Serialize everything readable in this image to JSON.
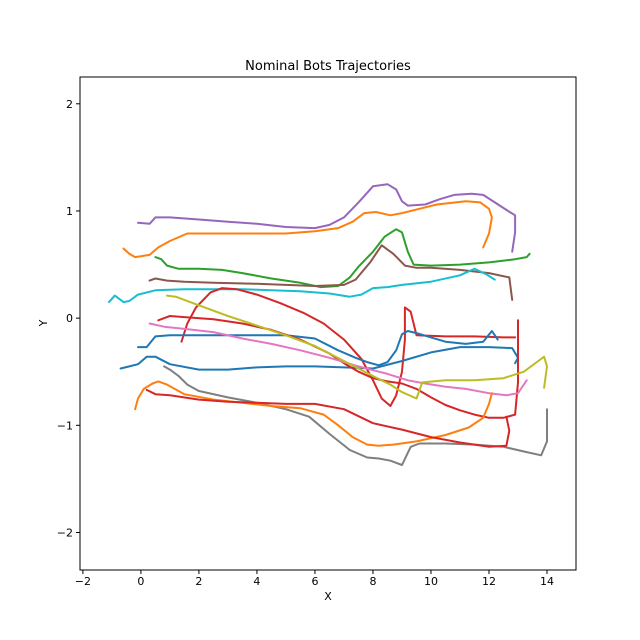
{
  "chart_data": {
    "type": "line",
    "title": "Nominal Bots Trajectories",
    "xlabel": "X",
    "ylabel": "Y",
    "xlim": [
      -2.1,
      15.0
    ],
    "ylim": [
      -2.35,
      2.25
    ],
    "xticks": [
      -2,
      0,
      2,
      4,
      6,
      8,
      10,
      12,
      14
    ],
    "yticks": [
      -2,
      -1,
      0,
      1,
      2
    ],
    "grid": false,
    "legend": "none",
    "series": [
      {
        "color": "#9467bd",
        "x": [
          -0.1,
          0.3,
          0.5,
          1.0,
          2.0,
          3.0,
          4.0,
          5.0,
          6.0,
          6.5,
          7.0,
          7.5,
          8.0,
          8.5,
          8.8,
          9.0,
          9.2,
          9.8,
          10.3,
          10.8,
          11.4,
          11.8,
          12.2,
          12.6,
          12.9,
          12.9,
          12.8
        ],
        "y": [
          0.89,
          0.88,
          0.94,
          0.94,
          0.92,
          0.9,
          0.88,
          0.85,
          0.84,
          0.87,
          0.94,
          1.08,
          1.23,
          1.25,
          1.2,
          1.09,
          1.05,
          1.06,
          1.11,
          1.15,
          1.16,
          1.15,
          1.08,
          1.01,
          0.96,
          0.8,
          0.62
        ]
      },
      {
        "color": "#ff7f0e",
        "x": [
          -0.6,
          -0.4,
          -0.2,
          0.3,
          0.6,
          1.0,
          1.6,
          3.0,
          4.0,
          5.0,
          6.0,
          6.8,
          7.3,
          7.7,
          8.1,
          8.6,
          9.0,
          9.6,
          10.2,
          11.2,
          11.7,
          12.0,
          12.1,
          12.0,
          11.8
        ],
        "y": [
          0.65,
          0.6,
          0.57,
          0.59,
          0.66,
          0.72,
          0.79,
          0.79,
          0.79,
          0.79,
          0.81,
          0.84,
          0.9,
          0.98,
          0.99,
          0.96,
          0.98,
          1.02,
          1.06,
          1.09,
          1.08,
          1.02,
          0.94,
          0.79,
          0.66
        ]
      },
      {
        "color": "#2ca02c",
        "x": [
          0.5,
          0.7,
          0.9,
          1.3,
          2.0,
          2.8,
          3.5,
          4.5,
          5.5,
          6.2,
          6.8,
          7.2,
          7.5,
          8.0,
          8.4,
          8.8,
          9.0,
          9.2,
          9.4,
          10.0,
          11.0,
          12.0,
          12.9,
          13.3,
          13.4
        ],
        "y": [
          0.57,
          0.55,
          0.49,
          0.46,
          0.46,
          0.45,
          0.42,
          0.37,
          0.33,
          0.29,
          0.3,
          0.38,
          0.48,
          0.62,
          0.76,
          0.83,
          0.8,
          0.62,
          0.5,
          0.49,
          0.5,
          0.52,
          0.55,
          0.57,
          0.6
        ]
      },
      {
        "color": "#8c564b",
        "x": [
          0.3,
          0.5,
          0.9,
          1.5,
          2.5,
          4.0,
          5.0,
          6.0,
          7.0,
          7.4,
          7.9,
          8.3,
          8.7,
          9.1,
          9.5,
          10.0,
          11.0,
          12.0,
          12.7,
          12.8
        ],
        "y": [
          0.35,
          0.37,
          0.35,
          0.34,
          0.33,
          0.32,
          0.31,
          0.3,
          0.31,
          0.36,
          0.52,
          0.68,
          0.6,
          0.49,
          0.47,
          0.47,
          0.45,
          0.42,
          0.38,
          0.17
        ]
      },
      {
        "color": "#17becf",
        "x": [
          -1.1,
          -0.9,
          -0.6,
          -0.4,
          -0.1,
          0.5,
          1.5,
          2.5,
          3.5,
          4.5,
          5.5,
          6.5,
          7.2,
          7.6,
          8.0,
          8.5,
          9.0,
          10.0,
          11.0,
          11.5,
          11.9,
          12.2
        ],
        "y": [
          0.15,
          0.21,
          0.15,
          0.16,
          0.22,
          0.26,
          0.27,
          0.27,
          0.27,
          0.26,
          0.25,
          0.23,
          0.2,
          0.22,
          0.28,
          0.29,
          0.31,
          0.34,
          0.4,
          0.46,
          0.41,
          0.36
        ]
      },
      {
        "color": "#d62728",
        "x": [
          1.4,
          1.6,
          1.9,
          2.4,
          2.8,
          3.3,
          4.0,
          4.8,
          5.6,
          6.3,
          7.0,
          7.6,
          8.0,
          8.3,
          8.6,
          8.8,
          9.0,
          9.1,
          9.1,
          9.3,
          9.5,
          10.5,
          11.5,
          12.5,
          12.9
        ],
        "y": [
          -0.22,
          -0.05,
          0.1,
          0.24,
          0.28,
          0.27,
          0.22,
          0.14,
          0.05,
          -0.05,
          -0.2,
          -0.38,
          -0.58,
          -0.75,
          -0.82,
          -0.72,
          -0.5,
          -0.2,
          0.1,
          0.06,
          -0.16,
          -0.17,
          -0.17,
          -0.18,
          -0.18
        ]
      },
      {
        "color": "#1f77b4",
        "x": [
          -0.1,
          0.2,
          0.5,
          1.0,
          2.0,
          3.5,
          5.0,
          6.0,
          6.8,
          7.4,
          7.8,
          8.2,
          8.5,
          8.8,
          9.0,
          9.2,
          9.5,
          10.0,
          10.5,
          11.2,
          11.8,
          12.1,
          12.3
        ],
        "y": [
          -0.27,
          -0.27,
          -0.17,
          -0.16,
          -0.16,
          -0.16,
          -0.16,
          -0.19,
          -0.3,
          -0.37,
          -0.41,
          -0.44,
          -0.41,
          -0.3,
          -0.15,
          -0.12,
          -0.14,
          -0.18,
          -0.22,
          -0.24,
          -0.22,
          -0.12,
          -0.2
        ]
      },
      {
        "color": "#1f77b4",
        "x": [
          -0.7,
          -0.4,
          -0.1,
          0.2,
          0.5,
          1.0,
          2.0,
          3.0,
          4.0,
          5.0,
          6.0,
          7.0,
          8.0,
          9.0,
          10.0,
          11.0,
          12.0,
          12.8,
          13.0,
          12.9
        ],
        "y": [
          -0.47,
          -0.45,
          -0.43,
          -0.36,
          -0.36,
          -0.43,
          -0.48,
          -0.48,
          -0.46,
          -0.45,
          -0.45,
          -0.46,
          -0.47,
          -0.4,
          -0.32,
          -0.27,
          -0.27,
          -0.28,
          -0.37,
          -0.42
        ]
      },
      {
        "color": "#d62728",
        "x": [
          0.6,
          1.0,
          1.5,
          2.5,
          3.5,
          4.5,
          5.5,
          6.5,
          7.0,
          7.5,
          8.0,
          8.5,
          9.0,
          9.5,
          10.0,
          10.5,
          11.0,
          11.5,
          12.0,
          12.5,
          12.9,
          13.0,
          13.0
        ],
        "y": [
          -0.02,
          0.02,
          0.01,
          -0.01,
          -0.05,
          -0.11,
          -0.2,
          -0.33,
          -0.42,
          -0.5,
          -0.56,
          -0.59,
          -0.61,
          -0.66,
          -0.74,
          -0.81,
          -0.86,
          -0.9,
          -0.93,
          -0.93,
          -0.9,
          -0.6,
          -0.02
        ]
      },
      {
        "color": "#e377c2",
        "x": [
          0.3,
          0.8,
          1.5,
          2.5,
          3.5,
          4.5,
          5.5,
          6.5,
          7.5,
          8.5,
          9.2,
          9.8,
          10.5,
          11.2,
          12.0,
          12.6,
          13.0,
          13.2,
          13.3
        ],
        "y": [
          -0.05,
          -0.08,
          -0.1,
          -0.13,
          -0.19,
          -0.24,
          -0.3,
          -0.37,
          -0.45,
          -0.52,
          -0.58,
          -0.61,
          -0.64,
          -0.66,
          -0.7,
          -0.72,
          -0.7,
          -0.62,
          -0.58
        ]
      },
      {
        "color": "#bcbd22",
        "x": [
          0.9,
          1.2,
          2.0,
          3.0,
          4.0,
          5.0,
          6.0,
          7.0,
          8.0,
          8.6,
          9.0,
          9.5,
          9.7,
          10.5,
          11.5,
          12.5,
          13.2,
          13.7,
          13.9,
          14.0,
          13.9
        ],
        "y": [
          0.21,
          0.2,
          0.12,
          0.02,
          -0.07,
          -0.16,
          -0.26,
          -0.4,
          -0.54,
          -0.62,
          -0.69,
          -0.75,
          -0.6,
          -0.58,
          -0.58,
          -0.56,
          -0.5,
          -0.4,
          -0.36,
          -0.45,
          -0.65
        ]
      },
      {
        "color": "#7f7f7f",
        "x": [
          0.8,
          1.0,
          1.3,
          1.6,
          2.0,
          3.0,
          4.0,
          5.0,
          5.8,
          6.5,
          7.2,
          7.8,
          8.2,
          8.6,
          9.0,
          9.3,
          9.6,
          10.5,
          11.5,
          12.5,
          13.3,
          13.8,
          14.0,
          14.0
        ],
        "y": [
          -0.45,
          -0.48,
          -0.54,
          -0.62,
          -0.68,
          -0.74,
          -0.79,
          -0.85,
          -0.92,
          -1.08,
          -1.23,
          -1.3,
          -1.31,
          -1.33,
          -1.37,
          -1.2,
          -1.17,
          -1.17,
          -1.18,
          -1.2,
          -1.25,
          -1.28,
          -1.15,
          -0.85
        ]
      },
      {
        "color": "#ff7f0e",
        "x": [
          -0.2,
          -0.1,
          0.1,
          0.4,
          0.6,
          0.9,
          1.5,
          2.5,
          3.5,
          4.5,
          5.5,
          6.3,
          6.8,
          7.3,
          7.8,
          8.2,
          8.7,
          9.5,
          10.5,
          11.3,
          11.8,
          12.0,
          12.1
        ],
        "y": [
          -0.85,
          -0.75,
          -0.66,
          -0.61,
          -0.59,
          -0.62,
          -0.71,
          -0.76,
          -0.79,
          -0.82,
          -0.84,
          -0.9,
          -1.0,
          -1.11,
          -1.18,
          -1.19,
          -1.18,
          -1.15,
          -1.09,
          -1.02,
          -0.93,
          -0.8,
          -0.7
        ]
      },
      {
        "color": "#d62728",
        "x": [
          0.2,
          0.5,
          1.0,
          2.0,
          3.0,
          4.0,
          5.0,
          6.0,
          7.0,
          8.0,
          9.0,
          10.0,
          11.0,
          12.0,
          12.6,
          12.7,
          12.6
        ],
        "y": [
          -0.67,
          -0.71,
          -0.72,
          -0.76,
          -0.78,
          -0.79,
          -0.8,
          -0.8,
          -0.85,
          -0.98,
          -1.04,
          -1.11,
          -1.16,
          -1.2,
          -1.19,
          -1.05,
          -0.92
        ]
      }
    ]
  }
}
